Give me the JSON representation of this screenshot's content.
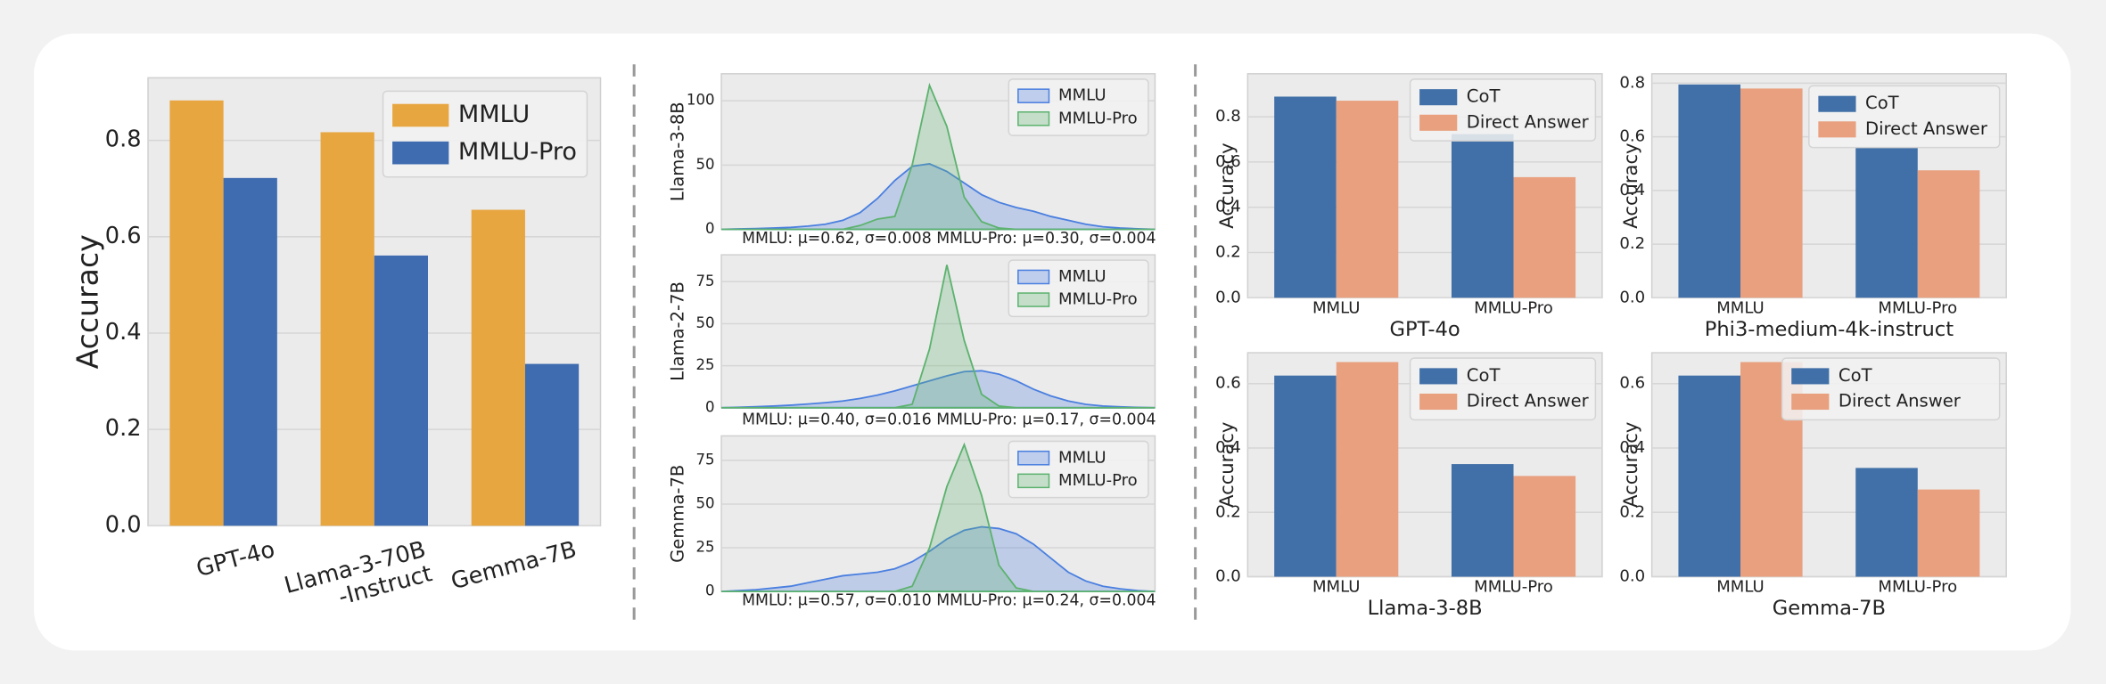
{
  "chart_data": [
    {
      "type": "bar",
      "ylabel": "Accuracy",
      "categories": [
        "GPT-4o",
        "Llama-3-70B\n-Instruct",
        "Gemma-7B"
      ],
      "series": [
        {
          "name": "MMLU",
          "color": "#e8a640",
          "values": [
            0.883,
            0.817,
            0.656
          ]
        },
        {
          "name": "MMLU-Pro",
          "color": "#3f6bb0",
          "values": [
            0.722,
            0.561,
            0.336
          ]
        }
      ],
      "ylim": [
        0,
        0.93
      ],
      "yticks": [
        {
          "value": 0,
          "label": "0.0"
        },
        0.2,
        0.4,
        0.6,
        0.8
      ],
      "grid": true,
      "legend": "upper right"
    },
    {
      "type": "area",
      "ylabel": "Llama-3-8B",
      "annotation": "MMLU: μ=0.62, σ=0.008  MMLU-Pro: μ=0.30, σ=0.004",
      "x": [
        0,
        0.04,
        0.08,
        0.12,
        0.16,
        0.2,
        0.24,
        0.28,
        0.32,
        0.36,
        0.4,
        0.44,
        0.48,
        0.52,
        0.56,
        0.6,
        0.64,
        0.68,
        0.72,
        0.76,
        0.8,
        0.84,
        0.88,
        0.92,
        0.96,
        1
      ],
      "xlim": [
        0,
        1
      ],
      "series": [
        {
          "name": "MMLU",
          "color": "#4a7fe0",
          "values": [
            0,
            0.3,
            0.6,
            1,
            1.5,
            2.5,
            4,
            7,
            13,
            24,
            38,
            49,
            51,
            45,
            36,
            27,
            21,
            17,
            14,
            10,
            7,
            4,
            2,
            1,
            0.4,
            0
          ]
        },
        {
          "name": "MMLU-Pro",
          "color": "#5cb26e",
          "values": [
            0,
            0,
            0,
            0,
            0,
            0,
            0,
            0,
            3,
            8,
            10,
            50,
            112,
            80,
            25,
            6,
            1,
            0,
            0,
            0,
            0,
            0,
            0,
            0,
            0,
            0
          ]
        }
      ],
      "ylim": [
        0,
        121
      ],
      "yticks": [
        0,
        50,
        100
      ],
      "grid": true,
      "legend": "upper right"
    },
    {
      "type": "area",
      "ylabel": "Llama-2-7B",
      "annotation": "MMLU: μ=0.40, σ=0.016  MMLU-Pro: μ=0.17, σ=0.004",
      "x": [
        0,
        0.04,
        0.08,
        0.12,
        0.16,
        0.2,
        0.24,
        0.28,
        0.32,
        0.36,
        0.4,
        0.44,
        0.48,
        0.52,
        0.56,
        0.6,
        0.64,
        0.68,
        0.72,
        0.76,
        0.8,
        0.84,
        0.88,
        0.92,
        0.96,
        1
      ],
      "xlim": [
        0,
        1
      ],
      "series": [
        {
          "name": "MMLU",
          "color": "#4a7fe0",
          "values": [
            0,
            0.3,
            0.6,
            1,
            1.5,
            2.2,
            3,
            4,
            5.5,
            7.5,
            10,
            13,
            16,
            19,
            21.5,
            22,
            20,
            16,
            11,
            7,
            4,
            2,
            1,
            0.5,
            0.2,
            0
          ]
        },
        {
          "name": "MMLU-Pro",
          "color": "#5cb26e",
          "values": [
            0,
            0,
            0,
            0,
            0,
            0,
            0,
            0,
            0,
            0,
            0,
            2,
            35,
            85,
            40,
            8,
            1,
            0,
            0,
            0,
            0,
            0,
            0,
            0,
            0,
            0
          ]
        }
      ],
      "ylim": [
        0,
        91
      ],
      "yticks": [
        0,
        25,
        50,
        75
      ],
      "grid": true,
      "legend": "upper right"
    },
    {
      "type": "area",
      "ylabel": "Gemma-7B",
      "annotation": "MMLU: μ=0.57, σ=0.010  MMLU-Pro: μ=0.24, σ=0.004",
      "x": [
        0,
        0.04,
        0.08,
        0.12,
        0.16,
        0.2,
        0.24,
        0.28,
        0.32,
        0.36,
        0.4,
        0.44,
        0.48,
        0.52,
        0.56,
        0.6,
        0.64,
        0.68,
        0.72,
        0.76,
        0.8,
        0.84,
        0.88,
        0.92,
        0.96,
        1
      ],
      "xlim": [
        0,
        1
      ],
      "series": [
        {
          "name": "MMLU",
          "color": "#4a7fe0",
          "values": [
            0,
            0.5,
            1,
            2,
            3,
            5,
            7,
            9,
            10,
            11,
            13,
            17,
            23,
            30,
            35,
            37,
            36,
            33,
            27,
            19,
            11,
            6,
            3,
            1.5,
            0.5,
            0
          ]
        },
        {
          "name": "MMLU-Pro",
          "color": "#5cb26e",
          "values": [
            0,
            0,
            0,
            0,
            0,
            0,
            0,
            0,
            0,
            0,
            0,
            3,
            25,
            60,
            84,
            55,
            15,
            2,
            0,
            0,
            0,
            0,
            0,
            0,
            0,
            0
          ]
        }
      ],
      "ylim": [
        0,
        89
      ],
      "yticks": [
        0,
        25,
        50,
        75
      ],
      "grid": true,
      "legend": "upper right"
    },
    {
      "type": "bar",
      "ylabel": "Accuracy",
      "xlabel": "GPT-4o",
      "categories": [
        "MMLU",
        "MMLU-Pro"
      ],
      "series": [
        {
          "name": "CoT",
          "color": "#4170a8",
          "values": [
            0.889,
            0.723
          ]
        },
        {
          "name": "Direct Answer",
          "color": "#e9a07f",
          "values": [
            0.871,
            0.533
          ]
        }
      ],
      "ylim": [
        0,
        0.99
      ],
      "yticks": [
        {
          "value": 0,
          "label": "0.0"
        },
        0.2,
        0.4,
        0.6,
        0.8
      ],
      "grid": true,
      "legend": "upper right"
    },
    {
      "type": "bar",
      "ylabel": "Accuracy",
      "xlabel": "Phi3-medium-4k-instruct",
      "categories": [
        "MMLU",
        "MMLU-Pro"
      ],
      "series": [
        {
          "name": "CoT",
          "color": "#4170a8",
          "values": [
            0.795,
            0.56
          ]
        },
        {
          "name": "Direct Answer",
          "color": "#e9a07f",
          "values": [
            0.78,
            0.475
          ]
        }
      ],
      "ylim": [
        0,
        0.835
      ],
      "yticks": [
        {
          "value": 0,
          "label": "0.0"
        },
        0.2,
        0.4,
        0.6,
        0.8
      ],
      "grid": true,
      "legend": "upper right"
    },
    {
      "type": "bar",
      "ylabel": "Accuracy",
      "xlabel": "Llama-3-8B",
      "categories": [
        "MMLU",
        "MMLU-Pro"
      ],
      "series": [
        {
          "name": "CoT",
          "color": "#4170a8",
          "values": [
            0.625,
            0.35
          ]
        },
        {
          "name": "Direct Answer",
          "color": "#e9a07f",
          "values": [
            0.667,
            0.313
          ]
        }
      ],
      "ylim": [
        0,
        0.696
      ],
      "yticks": [
        {
          "value": 0,
          "label": "0.0"
        },
        0.2,
        0.4,
        0.6
      ],
      "grid": true,
      "legend": "upper right"
    },
    {
      "type": "bar",
      "ylabel": "Accuracy",
      "xlabel": "Gemma-7B",
      "categories": [
        "MMLU",
        "MMLU-Pro"
      ],
      "series": [
        {
          "name": "CoT",
          "color": "#4170a8",
          "values": [
            0.625,
            0.338
          ]
        },
        {
          "name": "Direct Answer",
          "color": "#e9a07f",
          "values": [
            0.667,
            0.271
          ]
        }
      ],
      "ylim": [
        0,
        0.696
      ],
      "yticks": [
        {
          "value": 0,
          "label": "0.0"
        },
        0.2,
        0.4,
        0.6
      ],
      "grid": true,
      "legend": "upper right"
    }
  ]
}
